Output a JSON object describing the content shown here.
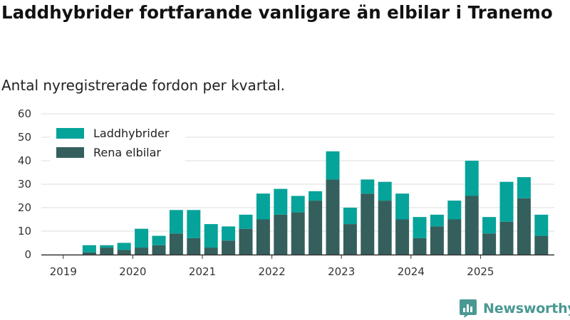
{
  "title": "Laddhybrider fortfarande vanligare än elbilar i Tranemo",
  "subtitle": "Antal nyregistrerade fordon per kvartal.",
  "brand": {
    "name": "Newsworthy",
    "color": "#4a9893",
    "logo_icon": "newsworthy-bar-chart-logo-icon"
  },
  "colors": {
    "laddhybrider": "#06a39a",
    "rena_elbilar": "#345f5c",
    "grid": "#dddddd",
    "axis": "#333333"
  },
  "chart_data": {
    "type": "bar",
    "stacked": true,
    "title": "Laddhybrider fortfarande vanligare än elbilar i Tranemo",
    "subtitle": "Antal nyregistrerade fordon per kvartal.",
    "xlabel": "",
    "ylabel": "",
    "ylim": [
      0,
      60
    ],
    "yticks": [
      "0",
      "10",
      "20",
      "30",
      "40",
      "50",
      "60"
    ],
    "xticks": [
      "2019",
      "2020",
      "2021",
      "2022",
      "2023",
      "2024",
      "2025"
    ],
    "grid": true,
    "legend_position": "top-left",
    "categories": [
      "2019 Q1",
      "2019 Q2",
      "2019 Q3",
      "2019 Q4",
      "2020 Q1",
      "2020 Q2",
      "2020 Q3",
      "2020 Q4",
      "2021 Q1",
      "2021 Q2",
      "2021 Q3",
      "2021 Q4",
      "2022 Q1",
      "2022 Q2",
      "2022 Q3",
      "2022 Q4",
      "2023 Q1",
      "2023 Q2",
      "2023 Q3",
      "2023 Q4",
      "2024 Q1",
      "2024 Q2",
      "2024 Q3",
      "2024 Q4",
      "2025 Q1",
      "2025 Q2",
      "2025 Q3",
      "2025 Q4"
    ],
    "series": [
      {
        "name": "Rena elbilar",
        "color": "#345f5c",
        "values": [
          0,
          1,
          3,
          2,
          3,
          4,
          9,
          7,
          3,
          6,
          11,
          15,
          17,
          18,
          23,
          32,
          13,
          26,
          23,
          15,
          7,
          12,
          15,
          25,
          9,
          14,
          24,
          8
        ]
      },
      {
        "name": "Laddhybrider",
        "color": "#06a39a",
        "values": [
          0,
          3,
          1,
          3,
          8,
          4,
          10,
          12,
          10,
          6,
          6,
          11,
          11,
          7,
          4,
          12,
          7,
          6,
          8,
          11,
          9,
          5,
          8,
          15,
          7,
          17,
          9,
          9
        ]
      }
    ],
    "legend": [
      "Laddhybrider",
      "Rena elbilar"
    ]
  }
}
